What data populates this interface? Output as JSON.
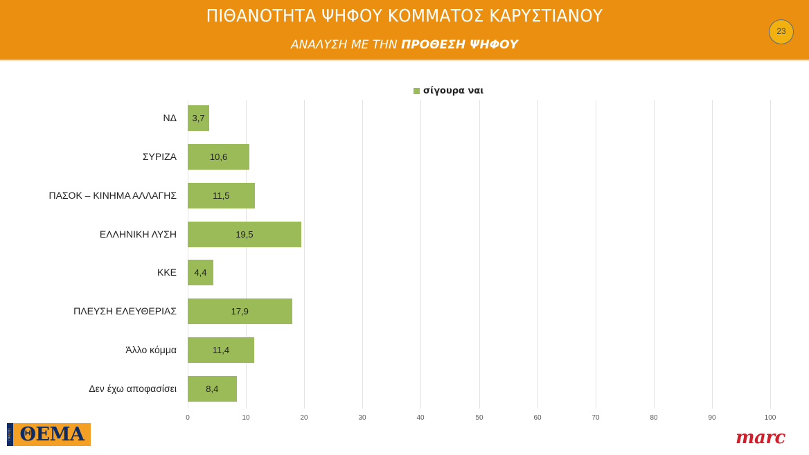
{
  "header": {
    "title": "ΠΙΘΑΝΟΤΗΤΑ ΨΗΦΟΥ ΚΟΜΜΑΤΟΣ ΚΑΡΥΣΤΙΑΝΟΥ",
    "subtitle_prefix": "ΑΝΑΛΥΣΗ ΜΕ ΤΗΝ ",
    "subtitle_bold": "ΠΡΟΘΕΣΗ ΨΗΦΟΥ",
    "page_number": "23",
    "background_color": "#EA8F10"
  },
  "legend": {
    "label": "σίγουρα ναι",
    "color": "#9BBB59"
  },
  "axis": {
    "ticks": [
      "0",
      "10",
      "20",
      "30",
      "40",
      "50",
      "60",
      "70",
      "80",
      "90",
      "100"
    ]
  },
  "bars": [
    {
      "label": "ΝΔ",
      "value": 3.7,
      "value_label": "3,7"
    },
    {
      "label": "ΣΥΡΙΖΑ",
      "value": 10.6,
      "value_label": "10,6"
    },
    {
      "label": "ΠΑΣΟΚ – ΚΙΝΗΜΑ ΑΛΛΑΓΗΣ",
      "value": 11.5,
      "value_label": "11,5"
    },
    {
      "label": "ΕΛΛΗΝΙΚΗ ΛΥΣΗ",
      "value": 19.5,
      "value_label": "19,5"
    },
    {
      "label": "ΚΚΕ",
      "value": 4.4,
      "value_label": "4,4"
    },
    {
      "label": "ΠΛΕΥΣΗ ΕΛΕΥΘΕΡΙΑΣ",
      "value": 17.9,
      "value_label": "17,9"
    },
    {
      "label": "Άλλο κόμμα",
      "value": 11.4,
      "value_label": "11,4"
    },
    {
      "label": "Δεν έχω αποφασίσει",
      "value": 8.4,
      "value_label": "8,4"
    }
  ],
  "logos": {
    "left_side_text": "ΠΡΩΤΟ",
    "left_main_text": "ΘΕΜΑ",
    "right_text": "marc"
  },
  "chart_data": {
    "type": "bar",
    "orientation": "horizontal",
    "title": "ΠΙΘΑΝΟΤΗΤΑ ΨΗΦΟΥ ΚΟΜΜΑΤΟΣ ΚΑΡΥΣΤΙΑΝΟΥ",
    "subtitle": "ΑΝΑΛΥΣΗ ΜΕ ΤΗΝ ΠΡΟΘΕΣΗ ΨΗΦΟΥ",
    "categories": [
      "ΝΔ",
      "ΣΥΡΙΖΑ",
      "ΠΑΣΟΚ – ΚΙΝΗΜΑ ΑΛΛΑΓΗΣ",
      "ΕΛΛΗΝΙΚΗ ΛΥΣΗ",
      "ΚΚΕ",
      "ΠΛΕΥΣΗ ΕΛΕΥΘΕΡΙΑΣ",
      "Άλλο κόμμα",
      "Δεν έχω αποφασίσει"
    ],
    "series": [
      {
        "name": "σίγουρα ναι",
        "color": "#9BBB59",
        "values": [
          3.7,
          10.6,
          11.5,
          19.5,
          4.4,
          17.9,
          11.4,
          8.4
        ]
      }
    ],
    "xlabel": "",
    "ylabel": "",
    "xlim": [
      0,
      100
    ],
    "xticks": [
      0,
      10,
      20,
      30,
      40,
      50,
      60,
      70,
      80,
      90,
      100
    ],
    "grid": "vertical",
    "legend_position": "top",
    "data_labels": true
  }
}
